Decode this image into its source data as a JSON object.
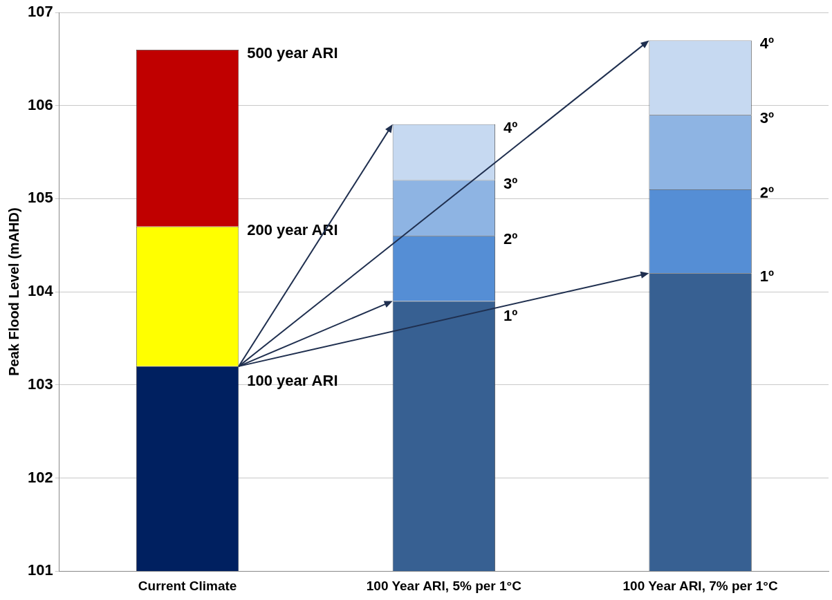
{
  "chart_data": {
    "type": "bar",
    "ylabel": "Peak Flood Level (mAHD)",
    "categories": [
      "Current Climate",
      "100 Year ARI, 5% per 1°C",
      "100 Year ARI, 7% per 1°C"
    ],
    "series": [
      {
        "colors": [
          "#002060",
          "#376092",
          "#376092"
        ],
        "base": [
          101,
          101,
          101
        ],
        "values": [
          2.2,
          2.9,
          3.2
        ]
      },
      {
        "colors": [
          "#ffff00",
          "#558ed5",
          "#558ed5"
        ],
        "base": [
          103.2,
          103.9,
          104.2
        ],
        "values": [
          1.5,
          0.7,
          0.9
        ]
      },
      {
        "colors": [
          "#c00000",
          "#8eb4e3",
          "#8eb4e3"
        ],
        "base": [
          104.7,
          104.6,
          105.1
        ],
        "values": [
          1.9,
          0.6,
          0.8
        ]
      },
      {
        "colors": [
          null,
          "#c6d9f1",
          "#c6d9f1"
        ],
        "base": [
          null,
          105.2,
          105.9
        ],
        "values": [
          null,
          0.6,
          0.8
        ]
      }
    ],
    "ylim": [
      101,
      107
    ],
    "yticks": [
      101,
      102,
      103,
      104,
      105,
      106,
      107
    ],
    "grid": "y",
    "legend": false,
    "annotations": [
      "100 year ARI",
      "200 year ARI",
      "500 year ARI",
      "1º",
      "2º",
      "3º",
      "4º",
      "1º",
      "2º",
      "3º",
      "4º"
    ]
  }
}
